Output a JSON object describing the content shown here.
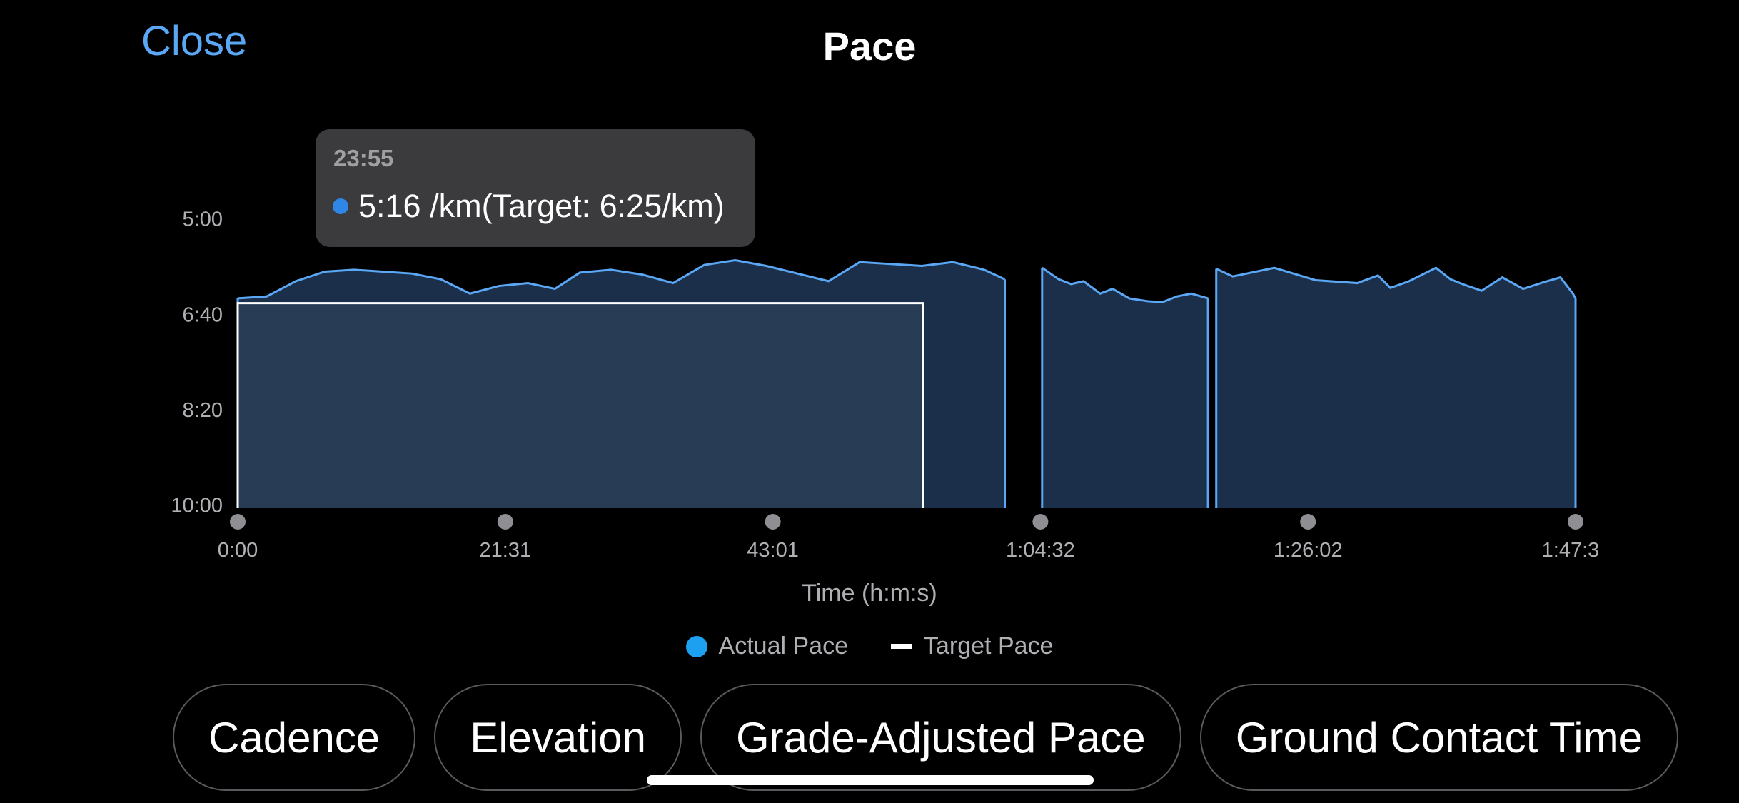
{
  "header": {
    "close_label": "Close",
    "title": "Pace"
  },
  "tooltip": {
    "time": "23:55",
    "value": "5:16 /km(Target: 6:25/km)"
  },
  "legend": {
    "actual_label": "Actual Pace",
    "target_label": "Target Pace"
  },
  "tabs": [
    "Cadence",
    "Elevation",
    "Grade-Adjusted Pace",
    "Ground Contact Time"
  ],
  "colors": {
    "accent": "#5aa8f5",
    "pace_line": "#5aa8f5",
    "pace_fill": "#1b2f4a",
    "target_fill": "#33475f",
    "target_line": "#ffffff",
    "gap_fill": "#1c1c1e",
    "legend_actual": "#1ea0f0",
    "axis_dot": "#8e8e93"
  },
  "chart_data": {
    "type": "area",
    "title": "Pace",
    "xlabel": "Time (h:m:s)",
    "ylabel": "",
    "y_inverted": true,
    "y_ticks": [
      "5:00",
      "6:40",
      "8:20",
      "10:00"
    ],
    "x_ticks": [
      "0:00",
      "21:31",
      "43:01",
      "1:04:32",
      "1:26:02",
      "1:47:3"
    ],
    "xlim_seconds": [
      0,
      6453
    ],
    "ylim_seconds_per_km": [
      300,
      600
    ],
    "series": [
      {
        "name": "Actual Pace",
        "unit": "min/km",
        "segments": [
          {
            "x": [
              0,
              140,
              280,
              420,
              560,
              700,
              840,
              980,
              1120,
              1260,
              1400,
              1530,
              1650,
              1800,
              1950,
              2100,
              2250,
              2400,
              2550,
              2700,
              2850,
              3000,
              3150,
              3300,
              3450,
              3600,
              3700
            ],
            "y": [
              380,
              378,
              362,
              352,
              350,
              352,
              354,
              360,
              375,
              367,
              364,
              370,
              353,
              350,
              355,
              364,
              345,
              340,
              346,
              354,
              362,
              342,
              344,
              346,
              342,
              350,
              360
            ]
          },
          {
            "x": [
              3880,
              3960,
              4020,
              4080,
              4160,
              4220,
              4300,
              4390,
              4460,
              4530,
              4600,
              4680
            ],
            "y": [
              348,
              360,
              365,
              362,
              375,
              370,
              380,
              383,
              384,
              378,
              375,
              380
            ]
          },
          {
            "x": [
              4720,
              4800,
              5000,
              5200,
              5400,
              5500,
              5560,
              5650,
              5780,
              5850,
              5920,
              6000,
              6100,
              6200,
              6300,
              6380,
              6440,
              6453
            ],
            "y": [
              349,
              357,
              348,
              361,
              364,
              356,
              369,
              362,
              348,
              360,
              366,
              372,
              358,
              370,
              363,
              358,
              375,
              380
            ]
          }
        ]
      },
      {
        "name": "Target Pace",
        "segments": [
          {
            "x": [
              0,
              3305
            ],
            "y": [
              385,
              385
            ]
          }
        ]
      }
    ],
    "grid": false,
    "legend_position": "bottom"
  }
}
